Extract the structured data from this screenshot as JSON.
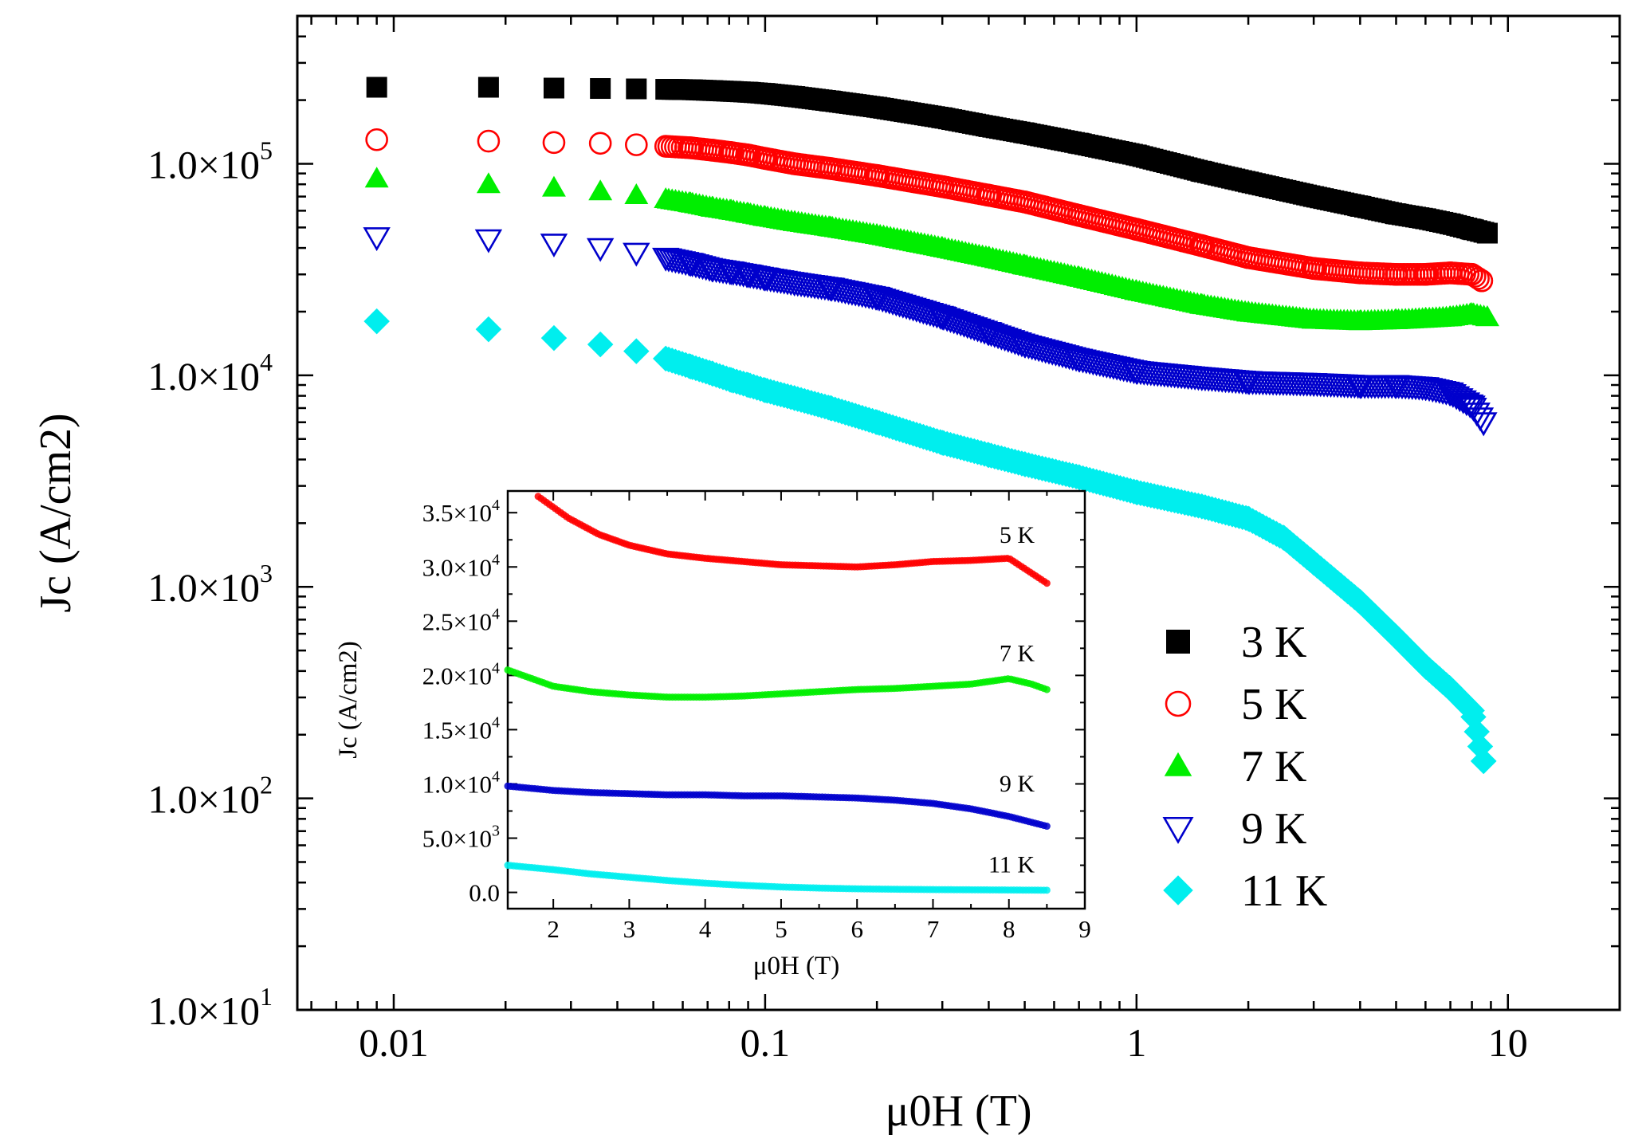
{
  "chart_data": [
    {
      "type": "scatter",
      "xlabel": "μ0H (T)",
      "ylabel": "Jc (A/cm2)",
      "xscale": "log",
      "yscale": "log",
      "xlim": [
        0.0055,
        20
      ],
      "ylim": [
        10,
        500000
      ],
      "xticks": [
        {
          "value": 0.01,
          "label": "0.01"
        },
        {
          "value": 0.1,
          "label": "0.1"
        },
        {
          "value": 1,
          "label": "1"
        },
        {
          "value": 10,
          "label": "10"
        }
      ],
      "yticks": [
        {
          "value": 10,
          "mant": "1.0×10",
          "exp": "1"
        },
        {
          "value": 100,
          "mant": "1.0×10",
          "exp": "2"
        },
        {
          "value": 1000,
          "mant": "1.0×10",
          "exp": "3"
        },
        {
          "value": 10000,
          "mant": "1.0×10",
          "exp": "4"
        },
        {
          "value": 100000,
          "mant": "1.0×10",
          "exp": "5"
        }
      ],
      "legend_position": "lower-right",
      "series": [
        {
          "name": "3 K",
          "color": "#000000",
          "marker": "square",
          "x": [
            0.009,
            0.018,
            0.027,
            0.036,
            0.045,
            0.054,
            0.063,
            0.072,
            0.081,
            0.09,
            0.1,
            0.12,
            0.15,
            0.2,
            0.3,
            0.4,
            0.5,
            0.7,
            1,
            1.5,
            2,
            3,
            4,
            5,
            6,
            7,
            8,
            8.8
          ],
          "y": [
            230000,
            230000,
            228000,
            227000,
            226000,
            225000,
            224000,
            222000,
            220000,
            218000,
            215000,
            208000,
            198000,
            185000,
            165000,
            150000,
            140000,
            125000,
            110000,
            92000,
            82000,
            70000,
            63000,
            58000,
            55000,
            52000,
            49000,
            47000
          ]
        },
        {
          "name": "5 K",
          "color": "#ff0000",
          "marker": "circle-open",
          "x": [
            0.009,
            0.018,
            0.027,
            0.036,
            0.045,
            0.054,
            0.063,
            0.072,
            0.081,
            0.09,
            0.1,
            0.12,
            0.15,
            0.2,
            0.3,
            0.4,
            0.5,
            0.7,
            1,
            1.5,
            2,
            3,
            4,
            5,
            6,
            7,
            8,
            8.5
          ],
          "y": [
            130000,
            128000,
            126000,
            125000,
            123000,
            121000,
            119000,
            116000,
            113000,
            110000,
            106000,
            100000,
            95000,
            88000,
            78000,
            71000,
            66000,
            57000,
            49000,
            41000,
            36000,
            32000,
            30500,
            30000,
            30000,
            30500,
            30000,
            28000
          ]
        },
        {
          "name": "7 K",
          "color": "#00ee00",
          "marker": "triangle",
          "x": [
            0.009,
            0.018,
            0.027,
            0.036,
            0.045,
            0.054,
            0.063,
            0.072,
            0.081,
            0.09,
            0.1,
            0.12,
            0.15,
            0.2,
            0.3,
            0.4,
            0.5,
            0.7,
            1,
            1.5,
            2,
            3,
            4,
            5,
            6,
            7,
            8,
            8.8
          ],
          "y": [
            85000,
            80000,
            77000,
            74000,
            71000,
            68000,
            65000,
            62000,
            60000,
            58000,
            56000,
            53000,
            50000,
            46000,
            40000,
            36000,
            33000,
            29000,
            25000,
            21500,
            19800,
            18300,
            18000,
            18200,
            18500,
            18800,
            19500,
            18800
          ]
        },
        {
          "name": "9 K",
          "color": "#0000cc",
          "marker": "triangle-down-open",
          "x": [
            0.009,
            0.018,
            0.027,
            0.036,
            0.045,
            0.054,
            0.063,
            0.072,
            0.081,
            0.09,
            0.1,
            0.12,
            0.15,
            0.2,
            0.3,
            0.4,
            0.5,
            0.7,
            1,
            1.5,
            2,
            3,
            4,
            5,
            6,
            7,
            8,
            8.6
          ],
          "y": [
            45000,
            44000,
            42000,
            40000,
            38000,
            36000,
            34000,
            32000,
            31000,
            30000,
            29000,
            27500,
            26000,
            23500,
            19000,
            16000,
            14000,
            12000,
            10500,
            9800,
            9400,
            9200,
            9000,
            9000,
            8800,
            8300,
            7200,
            6000
          ]
        },
        {
          "name": "11 K",
          "color": "#00eeee",
          "marker": "diamond",
          "x": [
            0.009,
            0.018,
            0.027,
            0.036,
            0.045,
            0.054,
            0.063,
            0.072,
            0.081,
            0.09,
            0.1,
            0.12,
            0.15,
            0.2,
            0.3,
            0.4,
            0.5,
            0.7,
            1,
            1.5,
            2,
            2.5,
            3,
            4,
            5,
            6,
            7,
            8,
            8.6
          ],
          "y": [
            18000,
            16500,
            15000,
            14000,
            13000,
            12000,
            11000,
            10200,
            9500,
            9000,
            8500,
            7800,
            7000,
            6000,
            4800,
            4200,
            3800,
            3300,
            2800,
            2400,
            2100,
            1700,
            1300,
            850,
            580,
            420,
            330,
            260,
            150
          ]
        }
      ]
    },
    {
      "type": "scatter",
      "inset": true,
      "xlabel": "μ0H (T)",
      "ylabel": "Jc (A/cm2)",
      "xlim": [
        1.4,
        9
      ],
      "ylim": [
        -1500,
        37000
      ],
      "xticks": [
        {
          "value": 2,
          "label": "2"
        },
        {
          "value": 3,
          "label": "3"
        },
        {
          "value": 4,
          "label": "4"
        },
        {
          "value": 5,
          "label": "5"
        },
        {
          "value": 6,
          "label": "6"
        },
        {
          "value": 7,
          "label": "7"
        },
        {
          "value": 8,
          "label": "8"
        },
        {
          "value": 9,
          "label": "9"
        }
      ],
      "yticks": [
        {
          "value": 0,
          "mant": "0.0",
          "exp": ""
        },
        {
          "value": 5000,
          "mant": "5.0×10",
          "exp": "3"
        },
        {
          "value": 10000,
          "mant": "1.0×10",
          "exp": "4"
        },
        {
          "value": 15000,
          "mant": "1.5×10",
          "exp": "4"
        },
        {
          "value": 20000,
          "mant": "2.0×10",
          "exp": "4"
        },
        {
          "value": 25000,
          "mant": "2.5×10",
          "exp": "4"
        },
        {
          "value": 30000,
          "mant": "3.0×10",
          "exp": "4"
        },
        {
          "value": 35000,
          "mant": "3.5×10",
          "exp": "4"
        }
      ],
      "series": [
        {
          "name": "5 K",
          "color": "#ff0000",
          "x": [
            1.8,
            2.2,
            2.6,
            3,
            3.5,
            4,
            4.5,
            5,
            5.5,
            6,
            6.5,
            7,
            7.5,
            8,
            8.5
          ],
          "y": [
            36500,
            34500,
            33000,
            32000,
            31200,
            30800,
            30500,
            30200,
            30100,
            30000,
            30200,
            30500,
            30600,
            30800,
            28500
          ]
        },
        {
          "name": "7 K",
          "color": "#00ee00",
          "x": [
            1.4,
            2,
            2.5,
            3,
            3.5,
            4,
            4.5,
            5,
            5.5,
            6,
            6.5,
            7,
            7.5,
            8,
            8.3,
            8.5
          ],
          "y": [
            20500,
            19000,
            18500,
            18200,
            18000,
            18000,
            18100,
            18300,
            18500,
            18700,
            18800,
            19000,
            19200,
            19700,
            19200,
            18700
          ]
        },
        {
          "name": "9 K",
          "color": "#0000cc",
          "x": [
            1.4,
            2,
            2.5,
            3,
            3.5,
            4,
            4.5,
            5,
            5.5,
            6,
            6.5,
            7,
            7.5,
            8,
            8.5
          ],
          "y": [
            9800,
            9400,
            9200,
            9100,
            9000,
            9000,
            8900,
            8900,
            8800,
            8700,
            8500,
            8200,
            7700,
            7000,
            6100
          ]
        },
        {
          "name": "11 K",
          "color": "#00eeee",
          "x": [
            1.4,
            2,
            2.5,
            3,
            3.5,
            4,
            4.5,
            5,
            5.5,
            6,
            6.5,
            7,
            7.5,
            8,
            8.5
          ],
          "y": [
            2500,
            2100,
            1700,
            1400,
            1100,
            850,
            650,
            500,
            400,
            330,
            290,
            260,
            240,
            220,
            200
          ]
        }
      ],
      "annotations": [
        {
          "series": "5 K",
          "text": "5 K"
        },
        {
          "series": "7 K",
          "text": "7 K"
        },
        {
          "series": "9 K",
          "text": "9 K"
        },
        {
          "series": "11 K",
          "text": "11 K"
        }
      ]
    }
  ]
}
